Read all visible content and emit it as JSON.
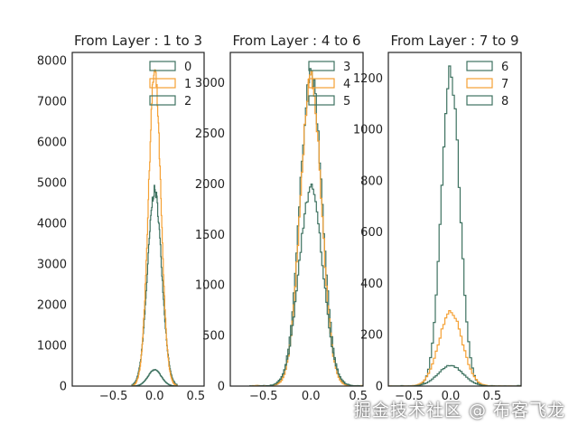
{
  "chart_data": [
    {
      "type": "histogram",
      "title": "From Layer : 1 to 3",
      "xlim": [
        -1.0,
        0.6
      ],
      "ylim": [
        0,
        8200
      ],
      "xticks": [
        -0.5,
        0.0,
        0.5
      ],
      "xtick_labels": [
        "−0.5",
        "0.0",
        "0.5"
      ],
      "yticks": [
        0,
        1000,
        2000,
        3000,
        4000,
        5000,
        6000,
        7000,
        8000
      ],
      "ytick_labels": [
        "0",
        "1000",
        "2000",
        "3000",
        "4000",
        "5000",
        "6000",
        "7000",
        "8000"
      ],
      "grid": false,
      "legend_position": "top-right",
      "series": [
        {
          "name": "0",
          "color": "#3e7260",
          "peak": 4800,
          "sigma": 0.085,
          "spread": 0.12
        },
        {
          "name": "1",
          "color": "#f5a033",
          "peak": 7700,
          "sigma": 0.075,
          "spread": 0.12
        },
        {
          "name": "2",
          "color": "#3e7260",
          "peak": 400,
          "sigma": 0.08,
          "spread": 0.12
        }
      ]
    },
    {
      "type": "histogram",
      "title": "From Layer : 4 to 6",
      "xlim": [
        -0.85,
        0.55
      ],
      "ylim": [
        0,
        3300
      ],
      "xticks": [
        -0.5,
        0.0,
        0.5
      ],
      "xtick_labels": [
        "−0.5",
        "0.0",
        "0.5"
      ],
      "yticks": [
        0,
        500,
        1000,
        1500,
        2000,
        2500,
        3000
      ],
      "ytick_labels": [
        "0",
        "500",
        "1000",
        "1500",
        "2000",
        "2500",
        "3000"
      ],
      "grid": false,
      "legend_position": "top-right",
      "series": [
        {
          "name": "3",
          "color": "#3e7260",
          "peak": 3100,
          "sigma": 0.115,
          "spread": 0.28
        },
        {
          "name": "4",
          "color": "#f5a033",
          "peak": 3050,
          "sigma": 0.11,
          "spread": 0.28
        },
        {
          "name": "5",
          "color": "#3e7260",
          "peak": 1950,
          "sigma": 0.125,
          "spread": 0.28
        }
      ]
    },
    {
      "type": "histogram",
      "title": "From Layer : 7 to 9",
      "xlim": [
        -0.75,
        0.85
      ],
      "ylim": [
        0,
        1300
      ],
      "xticks": [
        -0.5,
        0.0,
        0.5
      ],
      "xtick_labels": [
        "−0.5",
        "0.0",
        "0.5"
      ],
      "yticks": [
        0,
        200,
        400,
        600,
        800,
        1000,
        1200
      ],
      "ytick_labels": [
        "0",
        "200",
        "400",
        "600",
        "800",
        "1000",
        "1200"
      ],
      "grid": false,
      "legend_position": "top-right",
      "series": [
        {
          "name": "6",
          "color": "#3e7260",
          "peak": 1220,
          "sigma": 0.11,
          "spread": 0.45
        },
        {
          "name": "7",
          "color": "#f5a033",
          "peak": 290,
          "sigma": 0.14,
          "spread": 0.45
        },
        {
          "name": "8",
          "color": "#3e7260",
          "peak": 80,
          "sigma": 0.15,
          "spread": 0.45
        }
      ]
    }
  ],
  "watermark": "掘金技术社区 @ 布客飞龙"
}
